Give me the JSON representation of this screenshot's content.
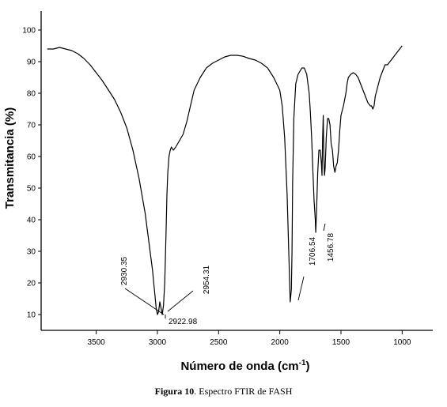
{
  "chart_data": {
    "type": "line",
    "ylabel": "Transmitancia (%)",
    "xlabel_main": "Número de onda (cm",
    "xlabel_sup": "-1",
    "xlabel_close": ")",
    "xlim": [
      3950,
      750
    ],
    "ylim": [
      5,
      106
    ],
    "x_ticks": [
      3500,
      3000,
      2500,
      2000,
      1500,
      1000
    ],
    "y_ticks": [
      10,
      20,
      30,
      40,
      50,
      60,
      70,
      80,
      90,
      100
    ],
    "grid": false,
    "series": [
      {
        "x": [
          3900,
          3850,
          3800,
          3750,
          3700,
          3650,
          3600,
          3550,
          3500,
          3450,
          3400,
          3350,
          3300,
          3250,
          3200,
          3150,
          3100,
          3080,
          3060,
          3040,
          3030,
          3020,
          3010,
          3000,
          2990,
          2980,
          2970,
          2960,
          2950,
          2940,
          2930,
          2922,
          2915,
          2905,
          2895,
          2885,
          2870,
          2850,
          2820,
          2790,
          2760,
          2730,
          2700,
          2650,
          2600,
          2550,
          2500,
          2450,
          2400,
          2350,
          2300,
          2250,
          2200,
          2150,
          2100,
          2050,
          2000,
          1980,
          1960,
          1940,
          1925,
          1915,
          1905,
          1900,
          1895,
          1885,
          1870,
          1850,
          1820,
          1800,
          1780,
          1760,
          1750,
          1740,
          1730,
          1720,
          1710,
          1706,
          1700,
          1690,
          1680,
          1670,
          1660,
          1655,
          1650,
          1645,
          1640,
          1635,
          1630,
          1620,
          1610,
          1600,
          1590,
          1580,
          1570,
          1560,
          1550,
          1540,
          1530,
          1520,
          1510,
          1500,
          1480,
          1460,
          1450,
          1440,
          1420,
          1400,
          1380,
          1360,
          1340,
          1320,
          1300,
          1280,
          1260,
          1250,
          1240,
          1230,
          1220,
          1200,
          1180,
          1160,
          1140,
          1120,
          1100,
          1080,
          1060,
          1040,
          1020,
          1000
        ],
        "y": [
          94,
          94,
          94.5,
          94,
          93.5,
          92.5,
          91,
          89,
          86.5,
          84,
          81,
          78,
          74,
          69,
          62,
          53,
          42,
          36,
          30,
          24,
          20,
          16,
          12,
          10,
          11,
          14,
          12,
          10,
          13,
          20,
          35,
          48,
          55,
          60,
          62,
          63,
          62,
          63,
          65,
          67,
          71,
          76,
          81,
          85,
          88,
          89.5,
          90.5,
          91.5,
          92,
          92,
          91.7,
          91,
          90.5,
          89.5,
          88,
          85,
          81,
          76,
          66,
          48,
          28,
          14,
          18,
          30,
          52,
          72,
          83,
          86,
          88,
          88,
          86,
          80,
          74,
          66,
          56,
          46,
          40,
          36,
          42,
          55,
          62,
          62,
          58,
          54,
          66,
          73,
          60,
          54,
          56,
          66,
          72,
          72,
          70,
          64,
          62,
          57,
          55,
          57,
          58,
          62,
          68,
          73,
          76,
          80,
          83,
          85,
          86,
          86.5,
          86,
          85,
          83,
          81,
          79,
          77,
          76,
          76,
          75,
          76,
          79,
          82,
          85,
          87,
          89,
          89,
          90,
          91,
          92,
          93,
          94,
          95
        ]
      }
    ],
    "annotations": [
      {
        "text": "2930.35"
      },
      {
        "text": "2954.31"
      },
      {
        "text": "2922.98"
      },
      {
        "text": "1706.54"
      },
      {
        "text": "1456.78"
      }
    ]
  },
  "caption": {
    "label": "Figura 10",
    "text": ". Espectro  FTIR  de FASH"
  }
}
